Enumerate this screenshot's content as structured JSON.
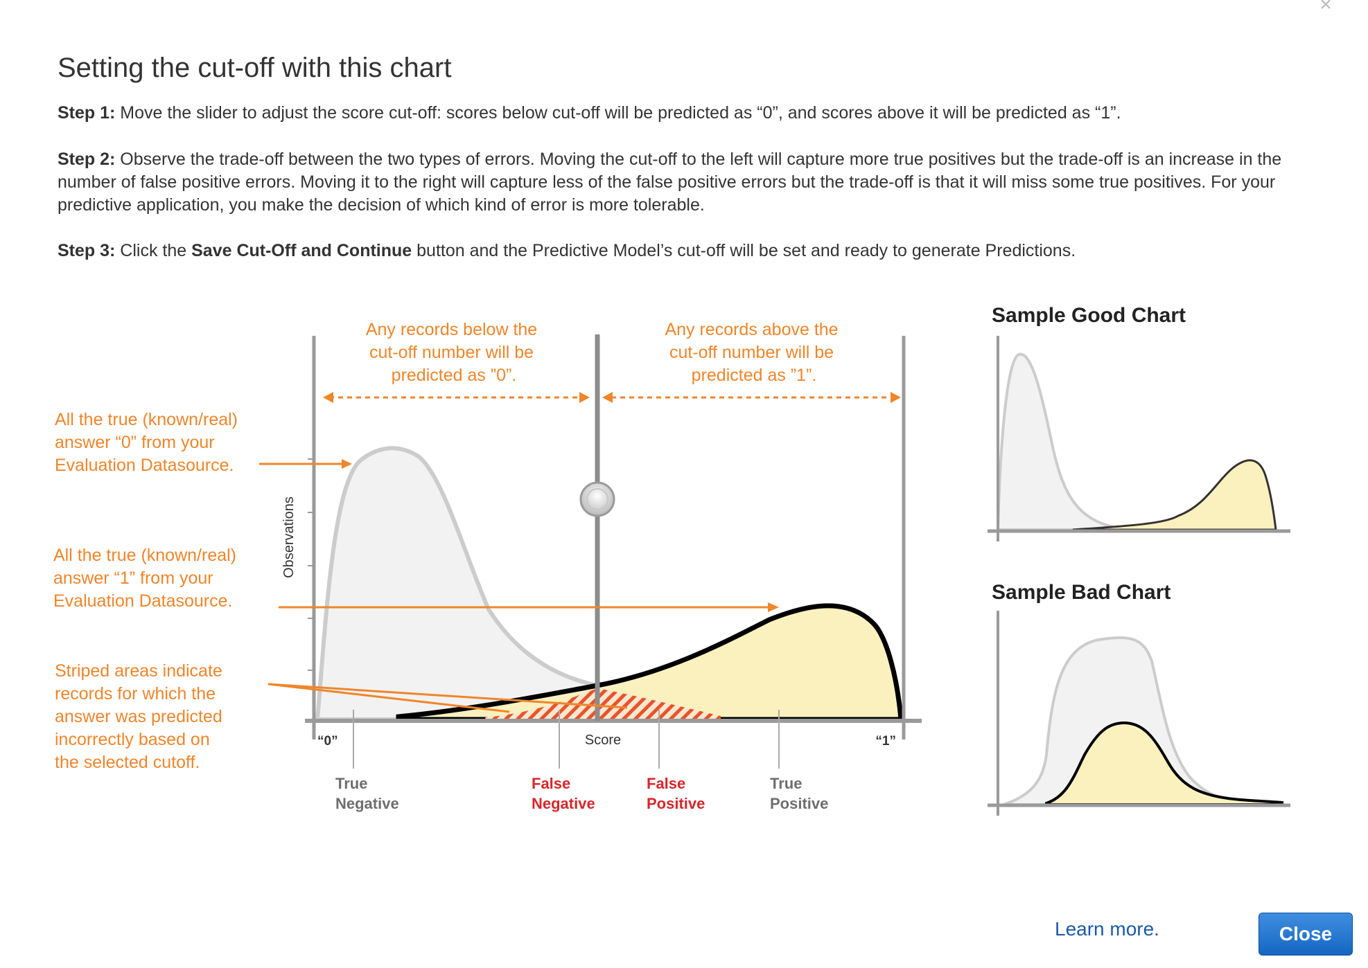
{
  "modal": {
    "close_icon": "×",
    "title": "Setting the cut-off with this chart",
    "step1": {
      "label": "Step 1:",
      "text": " Move the slider to adjust the score cut-off: scores below cut-off will be predicted as “0”, and scores above it will be predicted as “1”."
    },
    "step2": {
      "label": "Step 2:",
      "text": " Observe the trade-off between the two types of errors. Moving the cut-off to the left will capture more true positives but the trade-off is an increase in the number of false positive errors. Moving it to the right will capture less of the false positive errors but the trade-off is that it will miss some true positives. For your predictive application, you make the decision of which kind of error is more tolerable."
    },
    "step3": {
      "label": "Step 3:",
      "text_a": " Click the ",
      "button_name": "Save Cut-Off and Continue",
      "text_b": " button and the Predictive Model’s cut-off will be set and ready to generate Predictions."
    },
    "learn_more": "Learn more.",
    "close_button": "Close"
  },
  "figure": {
    "below_note": [
      "Any records below the",
      "cut-off number will be",
      "predicted as ”0”."
    ],
    "above_note": [
      "Any records above the",
      "cut-off number will be",
      "predicted as ”1”."
    ],
    "callout_zero": [
      "All the true (known/real)",
      "answer “0” from your",
      "Evaluation Datasource."
    ],
    "callout_one": [
      "All the true (known/real)",
      "answer “1” from your",
      "Evaluation Datasource."
    ],
    "callout_striped": [
      "Striped areas indicate",
      "records for which the",
      "answer was predicted",
      "incorrectly based on",
      "the selected cutoff."
    ],
    "y_axis_label": "Observations",
    "x_axis_label": "Score",
    "x_left_tick": "“0”",
    "x_right_tick": "“1”",
    "region_labels": {
      "true_negative": [
        "True",
        "Negative"
      ],
      "false_negative": [
        "False",
        "Negative"
      ],
      "false_positive": [
        "False",
        "Positive"
      ],
      "true_positive": [
        "True",
        "Positive"
      ]
    },
    "sample_good_title": "Sample Good Chart",
    "sample_bad_title": "Sample Bad Chart"
  },
  "colors": {
    "annotation_orange": "#f0852a",
    "error_red": "#d8262a",
    "negative_fill": "#f2f2f2",
    "positive_fill": "#faf1bf",
    "button_blue": "#1566c2",
    "link_blue": "#1c5aa8"
  },
  "icons": {
    "close": "close-icon",
    "slider": "slider-handle-icon"
  }
}
